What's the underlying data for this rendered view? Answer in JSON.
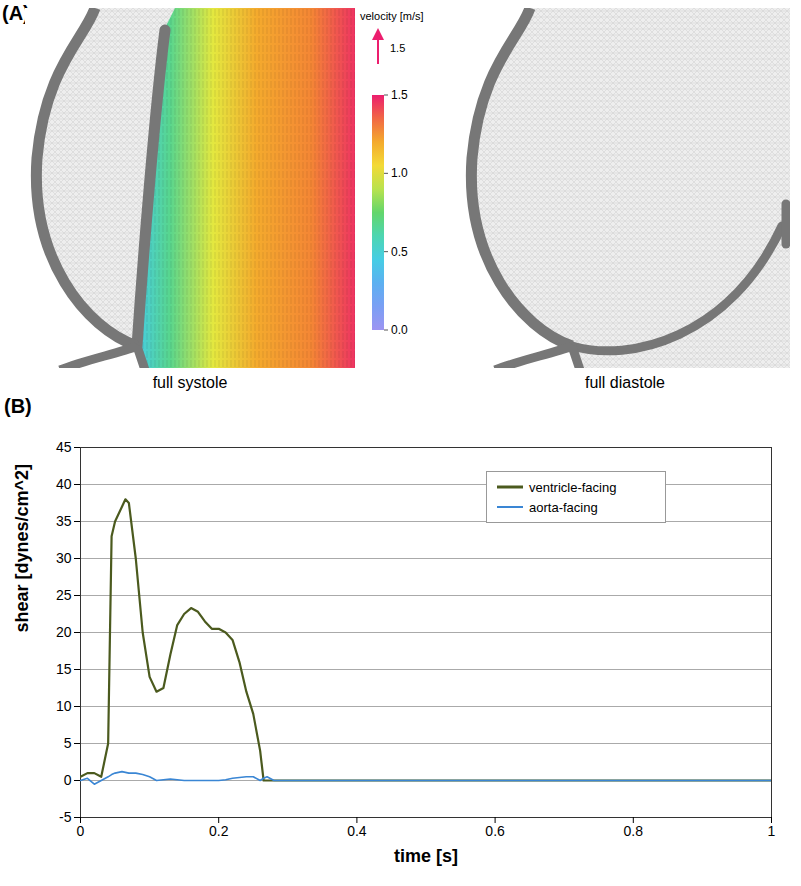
{
  "chart_data": [
    {
      "type": "vector_field",
      "panel": "(A)",
      "captions": [
        "full systole",
        "full diastole"
      ],
      "colorbar": {
        "label": "velocity [m/s]",
        "range": [
          0,
          1.5
        ],
        "ticks": [
          {
            "value": 0,
            "label": "0.0"
          },
          0.5,
          {
            "value": 1,
            "label": "1.0"
          },
          1.5
        ]
      },
      "reference_vector": 1.5
    },
    {
      "type": "line",
      "panel": "(B)",
      "x": [
        0,
        0.01,
        0.02,
        0.03,
        0.04,
        0.045,
        0.05,
        0.06,
        0.065,
        0.07,
        0.08,
        0.09,
        0.1,
        0.11,
        0.12,
        0.13,
        0.14,
        0.15,
        0.16,
        0.17,
        0.18,
        0.19,
        0.2,
        0.21,
        0.22,
        0.23,
        0.24,
        0.25,
        0.26,
        0.265,
        0.27,
        0.28,
        0.4,
        0.6,
        0.8,
        1
      ],
      "series": [
        {
          "name": "ventricle-facing",
          "color": "#4b5a1e",
          "values": [
            0.5,
            1,
            1,
            0.5,
            5,
            33,
            35,
            37,
            38,
            37.5,
            30,
            20,
            14,
            12,
            12.5,
            17,
            21,
            22.5,
            23.3,
            22.8,
            21.5,
            20.5,
            20.5,
            20,
            19,
            16,
            12,
            9,
            4,
            0,
            0,
            0,
            0,
            0,
            0,
            0
          ]
        },
        {
          "name": "aorta-facing",
          "color": "#3a86d4",
          "values": [
            0,
            0.3,
            -0.5,
            0,
            0.5,
            0.8,
            1,
            1.2,
            1.1,
            1,
            1,
            0.8,
            0.5,
            0,
            0.1,
            0.2,
            0.1,
            0,
            0,
            0,
            0,
            0,
            0,
            0.1,
            0.3,
            0.4,
            0.5,
            0.5,
            0,
            0.3,
            0.5,
            0,
            0,
            0,
            0,
            0
          ]
        }
      ],
      "x_label": "time [s]",
      "y_label": "shear [dynes/cm^2]",
      "xlim": [
        0,
        1
      ],
      "ylim": [
        -5,
        45
      ],
      "xticks": [
        0,
        0.2,
        0.4,
        0.6,
        0.8,
        1
      ],
      "yticks": [
        -5,
        0,
        5,
        10,
        15,
        20,
        25,
        30,
        35,
        40,
        45
      ],
      "grid": "y",
      "legend": "upper right"
    }
  ]
}
